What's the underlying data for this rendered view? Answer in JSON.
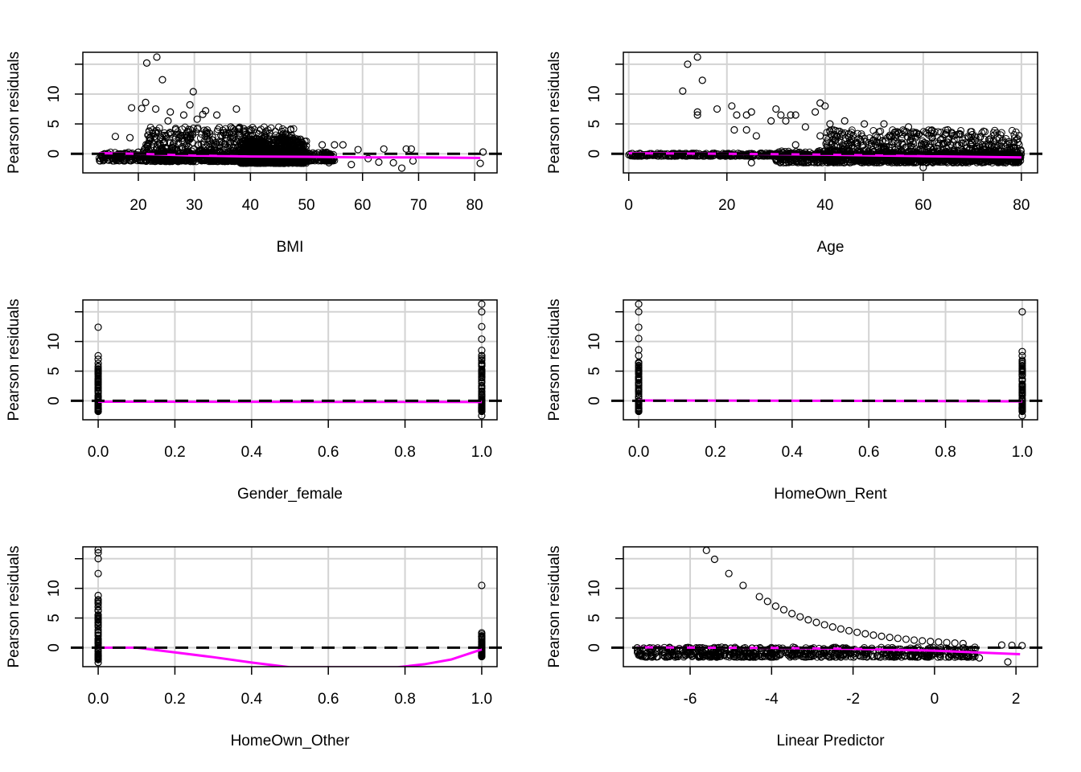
{
  "colors": {
    "points": "#000000",
    "smooth": "#ff00ff",
    "zero_line": "#000000",
    "grid": "#d3d3d3"
  },
  "chart_data": [
    {
      "type": "scatter",
      "xlabel": "BMI",
      "ylabel": "Pearson residuals",
      "xlim": [
        10.1,
        84
      ],
      "ylim": [
        -3.2,
        17
      ],
      "xticks": [
        20,
        30,
        40,
        50,
        60,
        70,
        80
      ],
      "xtick_labels": [
        "20",
        "30",
        "40",
        "50",
        "60",
        "70",
        "80"
      ],
      "yticks": [
        0,
        5,
        10,
        15
      ],
      "ytick_labels": [
        "0",
        "5",
        "10",
        ""
      ],
      "grid": true,
      "reference_line": 0,
      "points": [
        [
          21.5,
          15.2
        ],
        [
          23.3,
          16.2
        ],
        [
          24.3,
          12.4
        ],
        [
          29.8,
          10.4
        ],
        [
          29.2,
          8.2
        ],
        [
          21.3,
          8.6
        ],
        [
          18.8,
          7.7
        ],
        [
          20.6,
          7.6
        ],
        [
          23.1,
          7.5
        ],
        [
          25.7,
          7
        ],
        [
          37.5,
          7.5
        ],
        [
          28.1,
          6.5
        ],
        [
          31.5,
          6.6
        ],
        [
          32,
          7.2
        ],
        [
          34,
          6.5
        ],
        [
          15.9,
          2.9
        ],
        [
          18.5,
          2.7
        ],
        [
          30.5,
          5.8
        ],
        [
          25.3,
          5.5
        ],
        [
          36.5,
          4.5
        ],
        [
          38.8,
          4.2
        ],
        [
          42.7,
          3.7
        ],
        [
          45.5,
          2.8
        ],
        [
          47.3,
          3.1
        ],
        [
          49.5,
          1.3
        ],
        [
          52.8,
          1.5
        ],
        [
          55,
          1.5
        ],
        [
          56.5,
          1.5
        ],
        [
          59.2,
          0.7
        ],
        [
          63.8,
          0.8
        ],
        [
          67.8,
          0.8
        ],
        [
          68.7,
          0.8
        ],
        [
          81.5,
          0.3
        ],
        [
          81,
          -1.6
        ],
        [
          67,
          -2.4
        ],
        [
          65.5,
          -1.5
        ],
        [
          58,
          -1.8
        ],
        [
          62.9,
          -1.4
        ],
        [
          69,
          -1.2
        ],
        [
          46,
          -1.6
        ],
        [
          54,
          -1.5
        ],
        [
          15.5,
          -0.8
        ],
        [
          61,
          -0.8
        ]
      ],
      "dense_regions": [
        {
          "x": [
            21,
            48
          ],
          "y": [
            -1.3,
            4.5
          ]
        },
        {
          "x": [
            13,
            55
          ],
          "y": [
            -1.2,
            0.3
          ]
        },
        {
          "x": [
            38,
            50
          ],
          "y": [
            -1.6,
            2.5
          ]
        }
      ],
      "smooth": [
        [
          13,
          0.1
        ],
        [
          20,
          0
        ],
        [
          30,
          -0.3
        ],
        [
          40,
          -0.45
        ],
        [
          50,
          -0.5
        ],
        [
          60,
          -0.6
        ],
        [
          70,
          -0.6
        ],
        [
          81,
          -0.7
        ]
      ]
    },
    {
      "type": "scatter",
      "xlabel": "Age",
      "ylabel": "Pearson residuals",
      "xlim": [
        -1.1,
        83.3
      ],
      "ylim": [
        -3.2,
        17
      ],
      "xticks": [
        0,
        20,
        40,
        60,
        80
      ],
      "xtick_labels": [
        "0",
        "20",
        "40",
        "60",
        "80"
      ],
      "yticks": [
        0,
        5,
        10,
        15
      ],
      "ytick_labels": [
        "0",
        "5",
        "10",
        ""
      ],
      "grid": true,
      "reference_line": 0,
      "points": [
        [
          11,
          10.5
        ],
        [
          12,
          15
        ],
        [
          14,
          16.2
        ],
        [
          15,
          12.3
        ],
        [
          14,
          6.5
        ],
        [
          14,
          7
        ],
        [
          18,
          7.5
        ],
        [
          21,
          8
        ],
        [
          21.5,
          4
        ],
        [
          22,
          6.5
        ],
        [
          24,
          4
        ],
        [
          24,
          6.5
        ],
        [
          25,
          7
        ],
        [
          26,
          3
        ],
        [
          30,
          7.5
        ],
        [
          31,
          6.5
        ],
        [
          29,
          5.5
        ],
        [
          32,
          5.5
        ],
        [
          33,
          6.5
        ],
        [
          34,
          6.5
        ],
        [
          36,
          4.5
        ],
        [
          38,
          7
        ],
        [
          39,
          8.5
        ],
        [
          40,
          8
        ],
        [
          39,
          3
        ],
        [
          34,
          1.5
        ],
        [
          25,
          -1.5
        ],
        [
          60,
          -2.3
        ],
        [
          30,
          -1
        ],
        [
          38,
          -0.7
        ],
        [
          41,
          5
        ],
        [
          44,
          5.5
        ],
        [
          48,
          5
        ],
        [
          52,
          5
        ],
        [
          57,
          4.5
        ],
        [
          65,
          4
        ],
        [
          70,
          3.2
        ]
      ],
      "dense_regions": [
        {
          "x": [
            40,
            80
          ],
          "y": [
            -1.2,
            4
          ]
        },
        {
          "x": [
            0,
            80
          ],
          "y": [
            -0.4,
            0.1
          ]
        },
        {
          "x": [
            30,
            80
          ],
          "y": [
            -1.5,
            0.5
          ]
        }
      ],
      "smooth": [
        [
          0,
          0.1
        ],
        [
          20,
          0
        ],
        [
          40,
          -0.15
        ],
        [
          60,
          -0.4
        ],
        [
          80,
          -0.6
        ]
      ]
    },
    {
      "type": "scatter",
      "xlabel": "Gender_female",
      "ylabel": "Pearson residuals",
      "xlim": [
        -0.04,
        1.04
      ],
      "ylim": [
        -3.2,
        17
      ],
      "xticks": [
        0,
        0.2,
        0.4,
        0.6,
        0.8,
        1.0
      ],
      "xtick_labels": [
        "0.0",
        "0.2",
        "0.4",
        "0.6",
        "0.8",
        "1.0"
      ],
      "yticks": [
        0,
        5,
        10,
        15
      ],
      "ytick_labels": [
        "0",
        "5",
        "10",
        ""
      ],
      "grid": true,
      "reference_line": 0,
      "points": [
        [
          0,
          12.4
        ],
        [
          0,
          7.6
        ],
        [
          0,
          7
        ],
        [
          0,
          6.3
        ],
        [
          1,
          16.3
        ],
        [
          1,
          15
        ],
        [
          1,
          12.5
        ],
        [
          1,
          10.4
        ],
        [
          1,
          8.5
        ],
        [
          1,
          -2.5
        ]
      ],
      "dense_regions": [
        {
          "x": [
            0,
            0
          ],
          "y": [
            -1.8,
            6
          ]
        },
        {
          "x": [
            1,
            1
          ],
          "y": [
            -1.8,
            8
          ]
        }
      ],
      "smooth": [
        [
          0,
          -0.15
        ],
        [
          1,
          -0.2
        ]
      ]
    },
    {
      "type": "scatter",
      "xlabel": "HomeOwn_Rent",
      "ylabel": "Pearson residuals",
      "xlim": [
        -0.04,
        1.04
      ],
      "ylim": [
        -3.2,
        17
      ],
      "xticks": [
        0,
        0.2,
        0.4,
        0.6,
        0.8,
        1.0
      ],
      "xtick_labels": [
        "0.0",
        "0.2",
        "0.4",
        "0.6",
        "0.8",
        "1.0"
      ],
      "yticks": [
        0,
        5,
        10,
        15
      ],
      "ytick_labels": [
        "0",
        "5",
        "10",
        ""
      ],
      "grid": true,
      "reference_line": 0,
      "points": [
        [
          0,
          16.3
        ],
        [
          0,
          15
        ],
        [
          0,
          12.4
        ],
        [
          0,
          10.5
        ],
        [
          0,
          8.6
        ],
        [
          0,
          7.6
        ],
        [
          1,
          15
        ],
        [
          1,
          8.3
        ],
        [
          1,
          7.6
        ],
        [
          1,
          -2.5
        ]
      ],
      "dense_regions": [
        {
          "x": [
            0,
            0
          ],
          "y": [
            -1.8,
            6.5
          ]
        },
        {
          "x": [
            1,
            1
          ],
          "y": [
            -1.8,
            7
          ]
        }
      ],
      "smooth": [
        [
          0,
          0.05
        ],
        [
          0.5,
          0
        ],
        [
          1,
          -0.1
        ]
      ]
    },
    {
      "type": "scatter",
      "xlabel": "HomeOwn_Other",
      "ylabel": "Pearson residuals",
      "xlim": [
        -0.04,
        1.04
      ],
      "ylim": [
        -3.2,
        17
      ],
      "xticks": [
        0,
        0.2,
        0.4,
        0.6,
        0.8,
        1.0
      ],
      "xtick_labels": [
        "0.0",
        "0.2",
        "0.4",
        "0.6",
        "0.8",
        "1.0"
      ],
      "yticks": [
        0,
        5,
        10,
        15
      ],
      "ytick_labels": [
        "0",
        "5",
        "10",
        ""
      ],
      "grid": true,
      "reference_line": 0,
      "points": [
        [
          0,
          16.5
        ],
        [
          0,
          16
        ],
        [
          0,
          15
        ],
        [
          0,
          12.5
        ],
        [
          0,
          8.8
        ],
        [
          0,
          -2.5
        ],
        [
          1,
          10.5
        ],
        [
          1,
          2.5
        ],
        [
          1,
          -1.5
        ]
      ],
      "dense_regions": [
        {
          "x": [
            0,
            0
          ],
          "y": [
            -2,
            8.3
          ]
        },
        {
          "x": [
            1,
            1
          ],
          "y": [
            -1.4,
            2.4
          ]
        }
      ],
      "smooth": [
        [
          0,
          0
        ],
        [
          0.1,
          0
        ],
        [
          0.2,
          -0.8
        ],
        [
          0.3,
          -1.6
        ],
        [
          0.4,
          -2.5
        ],
        [
          0.5,
          -3.3
        ],
        [
          0.78,
          -3.3
        ],
        [
          0.85,
          -2.8
        ],
        [
          0.92,
          -2
        ],
        [
          1,
          -0.3
        ]
      ]
    },
    {
      "type": "scatter",
      "xlabel": "Linear Predictor",
      "ylabel": "Pearson residuals",
      "xlim": [
        -7.64,
        2.53
      ],
      "ylim": [
        -3.2,
        17
      ],
      "xticks": [
        -6,
        -4,
        -2,
        0,
        2
      ],
      "xtick_labels": [
        "-6",
        "-4",
        "-2",
        "0",
        "2"
      ],
      "yticks": [
        0,
        5,
        10,
        15
      ],
      "ytick_labels": [
        "0",
        "5",
        "10",
        ""
      ],
      "grid": true,
      "reference_line": 0,
      "points": [
        [
          -5.6,
          16.4
        ],
        [
          -5.4,
          14.9
        ],
        [
          -5.05,
          12.5
        ],
        [
          -4.7,
          10.5
        ],
        [
          -4.3,
          8.6
        ],
        [
          -4.1,
          7.8
        ],
        [
          -3.9,
          7.0
        ],
        [
          -3.7,
          6.4
        ],
        [
          -3.5,
          5.75
        ],
        [
          -3.3,
          5.2
        ],
        [
          -3.1,
          4.7
        ],
        [
          -2.9,
          4.26
        ],
        [
          -2.7,
          3.86
        ],
        [
          -2.5,
          3.49
        ],
        [
          -2.3,
          3.16
        ],
        [
          -2.1,
          2.86
        ],
        [
          -1.9,
          2.59
        ],
        [
          -1.7,
          2.34
        ],
        [
          -1.5,
          2.12
        ],
        [
          -1.3,
          1.92
        ],
        [
          -1.1,
          1.73
        ],
        [
          -0.9,
          1.57
        ],
        [
          -0.7,
          1.42
        ],
        [
          -0.5,
          1.28
        ],
        [
          -0.3,
          1.16
        ],
        [
          -0.1,
          1.05
        ],
        [
          0.1,
          0.95
        ],
        [
          0.3,
          0.86
        ],
        [
          0.5,
          0.78
        ],
        [
          0.7,
          0.7
        ],
        [
          1.65,
          0.44
        ],
        [
          1.9,
          0.4
        ],
        [
          2.15,
          0.34
        ],
        [
          -7.3,
          -0.03
        ],
        [
          -6.5,
          -0.04
        ],
        [
          -6,
          -0.05
        ],
        [
          -5,
          -0.08
        ],
        [
          -4,
          -0.14
        ],
        [
          -3,
          -0.22
        ],
        [
          -2,
          -0.37
        ],
        [
          -1.5,
          -0.47
        ],
        [
          -1,
          -0.61
        ],
        [
          -0.5,
          -0.78
        ],
        [
          0,
          -1
        ],
        [
          0.4,
          -1.22
        ],
        [
          0.8,
          -1.49
        ],
        [
          1.1,
          -1.73
        ],
        [
          1.8,
          -2.4
        ]
      ],
      "dense_regions": [
        {
          "x": [
            -7.3,
            1.0
          ],
          "y": [
            -1.6,
            0.1
          ]
        }
      ],
      "smooth": [
        [
          -7.3,
          0.05
        ],
        [
          -4,
          -0.05
        ],
        [
          -2,
          -0.2
        ],
        [
          0,
          -0.5
        ],
        [
          1,
          -0.8
        ],
        [
          2.1,
          -1.1
        ]
      ]
    }
  ]
}
